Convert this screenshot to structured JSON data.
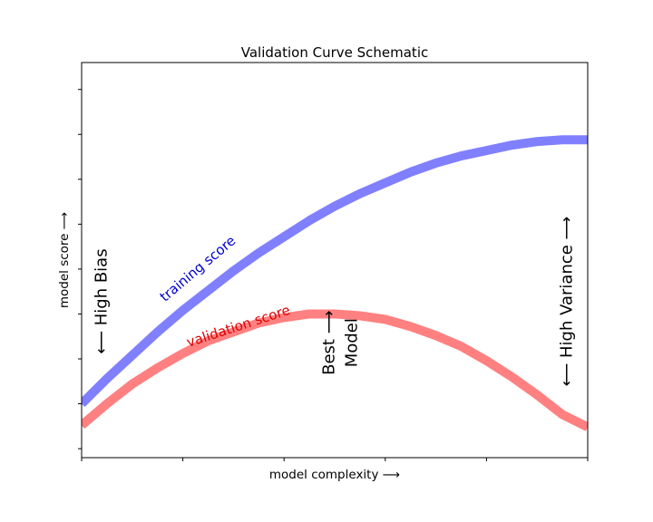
{
  "chart_data": {
    "type": "line",
    "title": "Validation Curve Schematic",
    "xlabel": "model complexity ⟶",
    "ylabel": "model score ⟶",
    "xlim": [
      0,
      1
    ],
    "ylim": [
      -0.3,
      1.9
    ],
    "grid": false,
    "x_ticks": [
      0,
      0.2,
      0.4,
      0.6,
      0.8,
      1.0
    ],
    "y_ticks": [
      -0.25,
      0,
      0.25,
      0.5,
      0.75,
      1.0,
      1.25,
      1.5,
      1.75
    ],
    "series": [
      {
        "name": "training score",
        "color": "#8080ff",
        "x": [
          0,
          0.05,
          0.1,
          0.15,
          0.2,
          0.25,
          0.3,
          0.35,
          0.4,
          0.45,
          0.5,
          0.55,
          0.6,
          0.65,
          0.7,
          0.75,
          0.8,
          0.85,
          0.9,
          0.95,
          1.0
        ],
        "y": [
          0.0,
          0.14,
          0.27,
          0.4,
          0.52,
          0.63,
          0.74,
          0.84,
          0.93,
          1.02,
          1.1,
          1.17,
          1.23,
          1.29,
          1.34,
          1.38,
          1.41,
          1.44,
          1.46,
          1.47,
          1.47
        ]
      },
      {
        "name": "validation score",
        "color": "#ff8080",
        "x": [
          0,
          0.05,
          0.1,
          0.15,
          0.2,
          0.25,
          0.3,
          0.35,
          0.4,
          0.45,
          0.5,
          0.55,
          0.6,
          0.65,
          0.7,
          0.75,
          0.8,
          0.85,
          0.9,
          0.95,
          1.0
        ],
        "y": [
          -0.12,
          0.0,
          0.11,
          0.2,
          0.28,
          0.35,
          0.4,
          0.45,
          0.48,
          0.5,
          0.5,
          0.49,
          0.47,
          0.43,
          0.38,
          0.32,
          0.24,
          0.15,
          0.05,
          -0.06,
          -0.13
        ]
      }
    ],
    "annotations": [
      {
        "text": "training score",
        "x": 0.23,
        "y": 0.75,
        "rotation": -40,
        "color": "#0000cc",
        "size": 15
      },
      {
        "text": "validation score",
        "x": 0.31,
        "y": 0.43,
        "rotation": -18,
        "color": "#dd0000",
        "size": 15
      },
      {
        "text": "⟵ High Bias",
        "x": 0.04,
        "y": 0.57,
        "rotation": -90,
        "color": "#000000",
        "size": 18
      },
      {
        "text": "⟵ High Variance ⟶",
        "x": 0.96,
        "y": 0.57,
        "rotation": -90,
        "color": "#000000",
        "size": 18
      },
      {
        "text": "Best ⟶",
        "x": 0.49,
        "y": 0.34,
        "rotation": -90,
        "color": "#000000",
        "size": 18
      },
      {
        "text": "Model",
        "x": 0.535,
        "y": 0.34,
        "rotation": -90,
        "color": "#000000",
        "size": 18
      }
    ]
  }
}
